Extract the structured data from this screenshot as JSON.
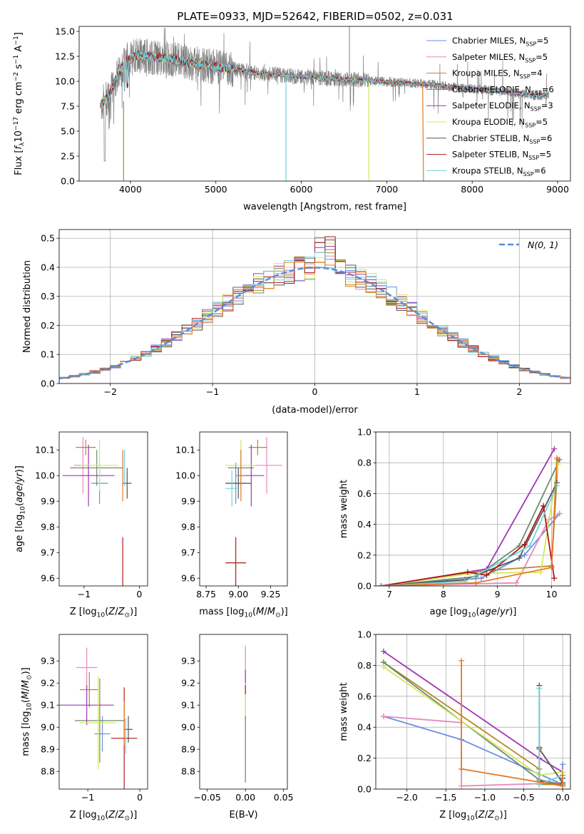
{
  "figure": {
    "title": "PLATE=0933, MJD=52642, FIBERID=0502, z=0.031"
  },
  "colors": {
    "Chabrier MILES": "#6a8ee0",
    "Salpeter MILES": "#e888bb",
    "Kroupa MILES": "#b8862a",
    "Chabrier ELODIE": "#6e8a72",
    "Salpeter ELODIE": "#a035b5",
    "Kroupa ELODIE": "#d4e85a",
    "Chabrier STELIB": "#555555",
    "Salpeter STELIB": "#b01818",
    "Kroupa STELIB": "#6fd3dd",
    "orange": "#e57a25",
    "normal": "#5b8bd8"
  },
  "chart_data": [
    {
      "id": "spectrum",
      "type": "line",
      "xlabel": "wavelength [Angstrom, rest frame]",
      "ylabel": "Flux [fλ10⁻¹⁷ erg cm⁻² s⁻¹ A⁻¹]",
      "xlim": [
        3400,
        9150
      ],
      "ylim": [
        0,
        15.5
      ],
      "xticks": [
        4000,
        5000,
        6000,
        7000,
        8000,
        9000
      ],
      "yticks": [
        0.0,
        2.5,
        5.0,
        7.5,
        10.0,
        12.5,
        15.0
      ],
      "legend_position": "top-right",
      "legend": [
        {
          "imf": "Chabrier",
          "lib": "MILES",
          "n": "5"
        },
        {
          "imf": "Salpeter",
          "lib": "MILES",
          "n": "5"
        },
        {
          "imf": "Kroupa",
          "lib": "MILES",
          "n": "4"
        },
        {
          "imf": "Chabrier",
          "lib": "ELODIE",
          "n": "6"
        },
        {
          "imf": "Salpeter",
          "lib": "ELODIE",
          "n": "3"
        },
        {
          "imf": "Kroupa",
          "lib": "ELODIE",
          "n": "5"
        },
        {
          "imf": "Chabrier",
          "lib": "STELIB",
          "n": "6"
        },
        {
          "imf": "Salpeter",
          "lib": "STELIB",
          "n": "5"
        },
        {
          "imf": "Kroupa",
          "lib": "STELIB",
          "n": "6"
        }
      ],
      "model_continuum": [
        [
          3650,
          7.6
        ],
        [
          3750,
          8.6
        ],
        [
          3850,
          10.6
        ],
        [
          3950,
          12.2
        ],
        [
          4100,
          12.6
        ],
        [
          4300,
          12.4
        ],
        [
          4500,
          12.2
        ],
        [
          4700,
          11.8
        ],
        [
          4900,
          11.6
        ],
        [
          5100,
          11.3
        ],
        [
          5300,
          11.1
        ],
        [
          5500,
          10.8
        ],
        [
          5700,
          10.7
        ],
        [
          5900,
          10.5
        ],
        [
          6100,
          10.4
        ],
        [
          6300,
          10.3
        ],
        [
          6500,
          10.2
        ],
        [
          6700,
          10.1
        ],
        [
          6900,
          10.0
        ],
        [
          7100,
          9.9
        ],
        [
          7300,
          9.8
        ],
        [
          7500,
          9.7
        ],
        [
          7700,
          9.5
        ],
        [
          7900,
          9.3
        ],
        [
          8100,
          9.2
        ],
        [
          8300,
          9.0
        ],
        [
          8500,
          8.8
        ],
        [
          8700,
          8.6
        ],
        [
          8900,
          8.6
        ]
      ]
    },
    {
      "id": "residuals",
      "type": "histogram",
      "xlabel": "(data-model)/error",
      "ylabel": "Normed distribution",
      "xlim": [
        -2.5,
        2.5
      ],
      "ylim": [
        0,
        0.53
      ],
      "xticks": [
        -2,
        -1,
        0,
        1,
        2
      ],
      "yticks": [
        0.0,
        0.1,
        0.2,
        0.3,
        0.4,
        0.5
      ],
      "grid": true,
      "legend_position": "top-right",
      "legend": "N(0, 1)",
      "bin_width": 0.1,
      "bin_start": -2.5,
      "bin_count": 50
    },
    {
      "id": "age_vs_Z",
      "type": "errorbar",
      "xlabel": "Z [log10(Z/Z⊙)]",
      "ylabel": "age  [log10(age/yr)]",
      "xlim": [
        -1.45,
        0.15
      ],
      "ylim": [
        9.57,
        10.17
      ],
      "xticks": [
        -1,
        0
      ],
      "yticks": [
        9.6,
        9.7,
        9.8,
        9.9,
        10.0,
        10.1
      ],
      "points": [
        {
          "model": "Chabrier MILES",
          "x": -0.72,
          "xerr": 0.15,
          "y": 9.97,
          "yerr": 0.08
        },
        {
          "model": "Salpeter MILES",
          "x": -1.02,
          "xerr": 0.16,
          "y": 10.04,
          "yerr": 0.11
        },
        {
          "model": "Kroupa MILES",
          "x": -0.97,
          "xerr": 0.18,
          "y": 10.11,
          "yerr": 0.03
        },
        {
          "model": "Chabrier ELODIE",
          "x": -0.77,
          "xerr": 0.48,
          "y": 10.03,
          "yerr": 0.07
        },
        {
          "model": "Salpeter ELODIE",
          "x": -0.92,
          "xerr": 0.47,
          "y": 10.0,
          "yerr": 0.12
        },
        {
          "model": "Kroupa ELODIE",
          "x": -0.72,
          "xerr": 0.35,
          "y": 10.04,
          "yerr": 0.1
        },
        {
          "model": "Chabrier STELIB",
          "x": -0.22,
          "xerr": 0.08,
          "y": 9.97,
          "yerr": 0.06
        },
        {
          "model": "Salpeter STELIB",
          "x": -0.3,
          "xerr": 0.0,
          "y": 9.66,
          "yerr": 0.1
        },
        {
          "model": "Kroupa STELIB",
          "x": -0.27,
          "xerr": 0.0,
          "y": 10.03,
          "yerr": 0.07
        },
        {
          "model": "orange",
          "x": -0.3,
          "xerr": 0.0,
          "y": 10.0,
          "yerr": 0.1
        }
      ]
    },
    {
      "id": "age_vs_mass",
      "type": "errorbar",
      "xlabel": "mass [log10(M/M⊙)]",
      "ylabel": "",
      "xlim": [
        8.7,
        9.38
      ],
      "ylim": [
        9.57,
        10.17
      ],
      "xticks": [
        8.75,
        9.0,
        9.25
      ],
      "yticks": [
        9.6,
        9.7,
        9.8,
        9.9,
        10.0,
        10.1
      ],
      "points": [
        {
          "model": "Chabrier MILES",
          "x": 8.98,
          "xerr": 0.08,
          "y": 9.97,
          "yerr": 0.08
        },
        {
          "model": "Salpeter MILES",
          "x": 9.22,
          "xerr": 0.12,
          "y": 10.04,
          "yerr": 0.11
        },
        {
          "model": "Kroupa MILES",
          "x": 9.15,
          "xerr": 0.07,
          "y": 10.11,
          "yerr": 0.03
        },
        {
          "model": "Chabrier ELODIE",
          "x": 9.02,
          "xerr": 0.1,
          "y": 10.03,
          "yerr": 0.07
        },
        {
          "model": "Salpeter ELODIE",
          "x": 9.1,
          "xerr": 0.1,
          "y": 10.0,
          "yerr": 0.12
        },
        {
          "model": "Kroupa ELODIE",
          "x": 9.02,
          "xerr": 0.12,
          "y": 10.04,
          "yerr": 0.1
        },
        {
          "model": "Chabrier STELIB",
          "x": 9.0,
          "xerr": 0.1,
          "y": 9.97,
          "yerr": 0.06
        },
        {
          "model": "Salpeter STELIB",
          "x": 8.98,
          "xerr": 0.08,
          "y": 9.66,
          "yerr": 0.1
        },
        {
          "model": "Kroupa STELIB",
          "x": 8.95,
          "xerr": 0.05,
          "y": 9.95,
          "yerr": 0.07
        },
        {
          "model": "orange",
          "x": 9.02,
          "xerr": 0.04,
          "y": 10.0,
          "yerr": 0.1
        }
      ]
    },
    {
      "id": "weight_vs_age",
      "type": "line",
      "xlabel": "age  [log10(age/yr)]",
      "ylabel": "mass weight",
      "xlim": [
        6.75,
        10.35
      ],
      "ylim": [
        0,
        1.0
      ],
      "xticks": [
        7,
        8,
        9,
        10
      ],
      "yticks": [
        0.0,
        0.2,
        0.4,
        0.6,
        0.8,
        1.0
      ],
      "grid": true,
      "series": [
        {
          "model": "Chabrier MILES",
          "x": [
            6.85,
            8.7,
            9.5,
            10.15
          ],
          "y": [
            0.0,
            0.05,
            0.2,
            0.47
          ]
        },
        {
          "model": "Salpeter MILES",
          "x": [
            6.85,
            9.35,
            9.95,
            10.15
          ],
          "y": [
            0.0,
            0.02,
            0.43,
            0.47
          ]
        },
        {
          "model": "Kroupa MILES",
          "x": [
            6.85,
            8.8,
            10.0,
            10.12
          ],
          "y": [
            0.0,
            0.1,
            0.13,
            0.82
          ]
        },
        {
          "model": "Chabrier ELODIE",
          "x": [
            6.85,
            8.6,
            9.4,
            10.15
          ],
          "y": [
            0.0,
            0.06,
            0.26,
            0.82
          ]
        },
        {
          "model": "Salpeter ELODIE",
          "x": [
            6.85,
            8.8,
            10.05
          ],
          "y": [
            0.0,
            0.11,
            0.89
          ]
        },
        {
          "model": "Kroupa ELODIE",
          "x": [
            6.85,
            8.5,
            9.8,
            10.12
          ],
          "y": [
            0.0,
            0.08,
            0.09,
            0.79
          ]
        },
        {
          "model": "Chabrier STELIB",
          "x": [
            6.85,
            8.4,
            9.4,
            10.1
          ],
          "y": [
            0.0,
            0.04,
            0.18,
            0.67
          ]
        },
        {
          "model": "Salpeter STELIB",
          "x": [
            6.85,
            8.45,
            8.8,
            9.5,
            9.85,
            10.05
          ],
          "y": [
            0.0,
            0.09,
            0.07,
            0.27,
            0.52,
            0.05
          ]
        },
        {
          "model": "Kroupa STELIB",
          "x": [
            6.85,
            8.4,
            9.6,
            10.1
          ],
          "y": [
            0.0,
            0.03,
            0.26,
            0.65
          ]
        },
        {
          "model": "orange",
          "x": [
            6.85,
            8.6,
            10.0,
            10.1
          ],
          "y": [
            0.0,
            0.02,
            0.12,
            0.83
          ]
        }
      ]
    },
    {
      "id": "mass_vs_Z",
      "type": "errorbar",
      "xlabel": "Z [log10(Z/Z⊙)]",
      "ylabel": "mass [log10(M/M⊙)]",
      "xlim": [
        -1.55,
        0.15
      ],
      "ylim": [
        8.72,
        9.42
      ],
      "xticks": [
        -1,
        0
      ],
      "yticks": [
        8.8,
        8.9,
        9.0,
        9.1,
        9.2,
        9.3
      ],
      "points": [
        {
          "model": "Chabrier MILES",
          "x": -0.72,
          "xerr": 0.15,
          "y": 8.97,
          "yerr": 0.08
        },
        {
          "model": "Salpeter MILES",
          "x": -1.02,
          "xerr": 0.2,
          "y": 9.27,
          "yerr": 0.09
        },
        {
          "model": "Kroupa MILES",
          "x": -0.97,
          "xerr": 0.18,
          "y": 9.17,
          "yerr": 0.08
        },
        {
          "model": "Chabrier ELODIE",
          "x": -0.77,
          "xerr": 0.48,
          "y": 9.03,
          "yerr": 0.19
        },
        {
          "model": "Salpeter ELODIE",
          "x": -1.02,
          "xerr": 0.52,
          "y": 9.1,
          "yerr": 0.09
        },
        {
          "model": "Kroupa ELODIE",
          "x": -0.8,
          "xerr": 0.35,
          "y": 9.02,
          "yerr": 0.21
        },
        {
          "model": "Chabrier STELIB",
          "x": -0.22,
          "xerr": 0.08,
          "y": 8.99,
          "yerr": 0.06
        },
        {
          "model": "Salpeter STELIB",
          "x": -0.3,
          "xerr": 0.25,
          "y": 8.95,
          "yerr": 0.23
        },
        {
          "model": "Kroupa STELIB",
          "x": -0.27,
          "xerr": 0.0,
          "y": 8.96,
          "yerr": 0.08
        },
        {
          "model": "orange",
          "x": -0.3,
          "xerr": 0.0,
          "y": 9.02,
          "yerr": 0.1
        }
      ]
    },
    {
      "id": "mass_vs_EBV",
      "type": "errorbar",
      "xlabel": "E(B-V)",
      "ylabel": "",
      "xlim": [
        -0.06,
        0.055
      ],
      "ylim": [
        8.72,
        9.42
      ],
      "xticks": [
        -0.05,
        0.0,
        0.05
      ],
      "yticks": [
        8.8,
        8.9,
        9.0,
        9.1,
        9.2,
        9.3
      ],
      "points": [
        {
          "model": "Salpeter MILES",
          "x": 0.0,
          "xerr": 0.0,
          "y": 9.2,
          "yerr": 0.17
        },
        {
          "model": "Kroupa ELODIE",
          "x": 0.0,
          "xerr": 0.0,
          "y": 8.95,
          "yerr": 0.2
        },
        {
          "model": "Chabrier ELODIE",
          "x": 0.0,
          "xerr": 0.0,
          "y": 8.9,
          "yerr": 0.15
        },
        {
          "model": "Salpeter ELODIE",
          "x": 0.0,
          "xerr": 0.0,
          "y": 9.23,
          "yerr": 0.03
        },
        {
          "model": "Salpeter STELIB",
          "x": 0.0,
          "xerr": 0.0,
          "y": 9.17,
          "yerr": 0.02
        }
      ]
    },
    {
      "id": "weight_vs_Z",
      "type": "line",
      "xlabel": "Z [log10(Z/Z⊙)]",
      "ylabel": "mass weight",
      "xlim": [
        -2.4,
        0.1
      ],
      "ylim": [
        0,
        1.0
      ],
      "xticks": [
        -2.0,
        -1.5,
        -1.0,
        -0.5,
        0.0
      ],
      "yticks": [
        0.0,
        0.2,
        0.4,
        0.6,
        0.8,
        1.0
      ],
      "grid": true,
      "series": [
        {
          "model": "Chabrier MILES",
          "x": [
            -2.3,
            -1.3,
            0.0,
            0.0
          ],
          "y": [
            0.47,
            0.32,
            0.03,
            0.16
          ]
        },
        {
          "model": "Salpeter MILES",
          "x": [
            -2.3,
            -1.3,
            -1.3,
            0.0
          ],
          "y": [
            0.47,
            0.43,
            0.02,
            0.04
          ]
        },
        {
          "model": "Kroupa MILES",
          "x": [
            -2.3,
            -0.3,
            -0.3,
            0.0
          ],
          "y": [
            0.82,
            0.13,
            0.03,
            0.03
          ]
        },
        {
          "model": "Chabrier ELODIE",
          "x": [
            -2.3,
            -0.3,
            0.0
          ],
          "y": [
            0.82,
            0.06,
            0.03
          ]
        },
        {
          "model": "Salpeter ELODIE",
          "x": [
            -2.3,
            -0.3,
            0.0
          ],
          "y": [
            0.89,
            0.2,
            0.11
          ]
        },
        {
          "model": "Kroupa ELODIE",
          "x": [
            -2.3,
            -0.3,
            0.0
          ],
          "y": [
            0.79,
            0.09,
            0.11
          ]
        },
        {
          "model": "Chabrier STELIB",
          "x": [
            -0.3,
            -0.3,
            0.0,
            0.0
          ],
          "y": [
            0.67,
            0.26,
            0.04,
            0.07
          ]
        },
        {
          "model": "Salpeter STELIB",
          "x": [
            -0.3,
            -0.3,
            0.0
          ],
          "y": [
            0.27,
            0.05,
            0.02
          ]
        },
        {
          "model": "Kroupa STELIB",
          "x": [
            -0.3,
            -0.3,
            0.0
          ],
          "y": [
            0.65,
            0.03,
            0.09
          ]
        },
        {
          "model": "orange",
          "x": [
            -1.3,
            -1.3,
            0.0,
            0.0
          ],
          "y": [
            0.83,
            0.13,
            0.02,
            0.09
          ]
        }
      ]
    }
  ]
}
